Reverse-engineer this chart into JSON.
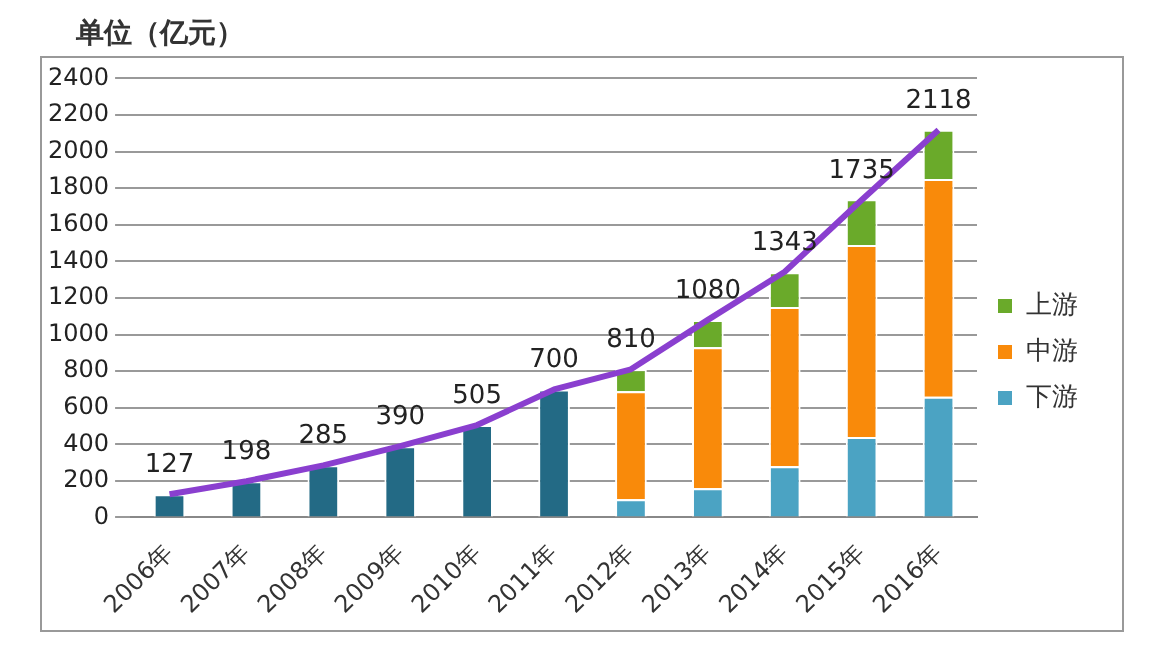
{
  "chart_data": {
    "type": "bar",
    "stacked": true,
    "ylabel": "单位（亿元）",
    "categories": [
      "2006年",
      "2007年",
      "2008年",
      "2009年",
      "2010年",
      "2011年",
      "2012年",
      "2013年",
      "2014年",
      "2015年",
      "2016年"
    ],
    "series": [
      {
        "color": "#236a85",
        "values": [
          127,
          198,
          285,
          390,
          505,
          700,
          null,
          null,
          null,
          null,
          null
        ]
      },
      {
        "name": "下游",
        "color": "#4ba3c3",
        "values": [
          null,
          null,
          null,
          null,
          null,
          null,
          100,
          160,
          280,
          440,
          660
        ]
      },
      {
        "name": "中游",
        "color": "#f98a0a",
        "values": [
          null,
          null,
          null,
          null,
          null,
          null,
          590,
          770,
          870,
          1050,
          1190
        ]
      },
      {
        "name": "上游",
        "color": "#6aaa2a",
        "values": [
          null,
          null,
          null,
          null,
          null,
          null,
          120,
          150,
          190,
          250,
          270
        ]
      },
      {
        "type": "line",
        "color": "#8a3fcf",
        "values": [
          127,
          198,
          285,
          390,
          505,
          700,
          810,
          1080,
          1343,
          1735,
          2118
        ],
        "value_labels": [
          "127",
          "198",
          "285",
          "390",
          "505",
          "700",
          "810",
          "1080",
          "1343",
          "1735",
          "2118"
        ]
      }
    ],
    "ylim": [
      0,
      2400
    ],
    "yticks": [
      0,
      200,
      400,
      600,
      800,
      1000,
      1200,
      1400,
      1600,
      1800,
      2000,
      2200,
      2400
    ],
    "grid": "y",
    "legend": "right",
    "marker": "none",
    "line_style": "solid"
  }
}
